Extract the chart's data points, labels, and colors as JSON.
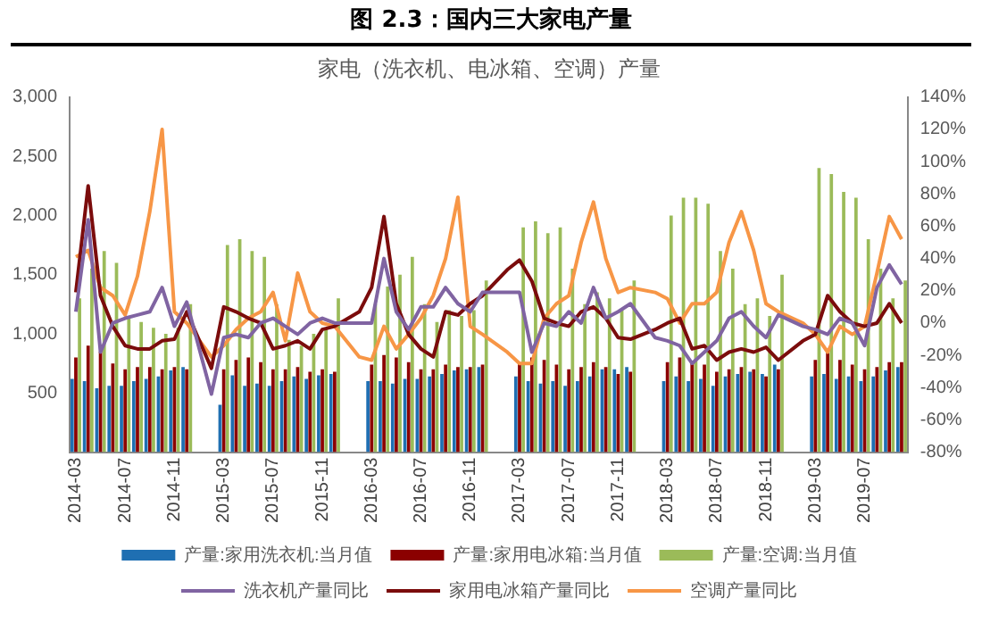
{
  "chart_data": {
    "type": "bar",
    "title": "图 2.3：国内三大家电产量",
    "subtitle": "家电（洗衣机、电冰箱、空调）产量",
    "categories": [
      "2014-03",
      null,
      null,
      null,
      "2014-07",
      null,
      null,
      null,
      "2014-11",
      null,
      null,
      null,
      "2015-03",
      null,
      null,
      null,
      "2015-07",
      null,
      null,
      null,
      "2015-11",
      null,
      null,
      null,
      "2016-03",
      null,
      null,
      null,
      "2016-07",
      null,
      null,
      null,
      "2016-11",
      null,
      null,
      null,
      "2017-03",
      null,
      null,
      null,
      "2017-07",
      null,
      null,
      null,
      "2017-11",
      null,
      null,
      null,
      "2018-03",
      null,
      null,
      null,
      "2018-07",
      null,
      null,
      null,
      "2018-11",
      null,
      null,
      null,
      "2019-03",
      null,
      null,
      null,
      "2019-07",
      null,
      null,
      null
    ],
    "series": [
      {
        "name": "产量:家用洗衣机:当月值",
        "color": "#1f6fb2",
        "values": [
          620,
          600,
          540,
          560,
          560,
          600,
          620,
          640,
          690,
          720,
          null,
          null,
          400,
          650,
          560,
          580,
          560,
          600,
          640,
          620,
          650,
          660,
          null,
          null,
          600,
          600,
          580,
          620,
          620,
          640,
          660,
          690,
          700,
          720,
          null,
          null,
          640,
          600,
          580,
          600,
          560,
          600,
          640,
          700,
          700,
          720,
          null,
          null,
          600,
          640,
          600,
          620,
          560,
          640,
          660,
          680,
          660,
          740,
          null,
          null,
          640,
          660,
          620,
          640,
          600,
          640,
          690,
          720
        ]
      },
      {
        "name": "产量:家用电冰箱:当月值",
        "color": "#8b0000",
        "values": [
          800,
          900,
          850,
          750,
          700,
          720,
          720,
          700,
          720,
          700,
          null,
          null,
          700,
          780,
          800,
          760,
          700,
          700,
          720,
          680,
          700,
          680,
          null,
          null,
          740,
          820,
          800,
          760,
          700,
          700,
          740,
          720,
          720,
          740,
          null,
          null,
          760,
          800,
          780,
          740,
          700,
          720,
          760,
          720,
          660,
          680,
          null,
          null,
          760,
          800,
          760,
          740,
          680,
          700,
          720,
          700,
          640,
          700,
          null,
          null,
          780,
          840,
          780,
          740,
          700,
          720,
          760,
          760
        ]
      },
      {
        "name": "产量:空调:当月值",
        "color": "#9bbb59",
        "values": [
          1300,
          1550,
          1700,
          1600,
          1150,
          1100,
          1050,
          1000,
          1050,
          1250,
          null,
          null,
          1750,
          1800,
          1700,
          1650,
          1250,
          950,
          900,
          1000,
          1050,
          1300,
          null,
          null,
          1250,
          1400,
          1500,
          1650,
          1250,
          1100,
          1200,
          1150,
          1200,
          1450,
          null,
          null,
          1900,
          1950,
          1850,
          1900,
          1550,
          1250,
          1350,
          1300,
          1200,
          1450,
          null,
          null,
          2000,
          2150,
          2150,
          2100,
          1700,
          1550,
          1250,
          1300,
          1150,
          1500,
          null,
          null,
          2400,
          2350,
          2200,
          2150,
          1800,
          1550,
          1300,
          1450
        ]
      },
      {
        "name": "洗衣机产量同比",
        "type": "line",
        "axis": "y2",
        "color": "#8064a2",
        "values": [
          7,
          64,
          -18,
          0,
          3,
          5,
          7,
          22,
          -2,
          13,
          null,
          -44,
          -9,
          -7,
          -9,
          0,
          3,
          -2,
          -7,
          0,
          3,
          0,
          null,
          0,
          0,
          40,
          7,
          -4,
          10,
          10,
          22,
          12,
          7,
          19,
          null,
          19,
          19,
          -18,
          0,
          -2,
          7,
          0,
          22,
          3,
          7,
          12,
          null,
          -9,
          -11,
          -14,
          -25,
          -18,
          -11,
          3,
          7,
          -2,
          -9,
          5,
          null,
          -2,
          -4,
          -7,
          3,
          0,
          -14,
          22,
          36,
          24
        ]
      },
      {
        "name": "家用电冰箱产量同比",
        "type": "line",
        "axis": "y2",
        "color": "#7b0c0c",
        "values": [
          19,
          85,
          17,
          -2,
          -14,
          -16,
          -16,
          -11,
          -10,
          7,
          null,
          -28,
          10,
          7,
          3,
          0,
          -16,
          -14,
          -11,
          -16,
          -4,
          -2,
          null,
          7,
          22,
          66,
          12,
          -7,
          -16,
          -21,
          7,
          5,
          12,
          17,
          null,
          33,
          39,
          26,
          3,
          0,
          -2,
          7,
          10,
          3,
          -9,
          -10,
          null,
          -4,
          0,
          3,
          -16,
          -14,
          -23,
          -18,
          -16,
          -18,
          -15,
          -23,
          null,
          -11,
          -7,
          17,
          7,
          0,
          -2,
          0,
          12,
          0
        ]
      },
      {
        "name": "空调产量同比",
        "type": "line",
        "axis": "y2",
        "color": "#f79646",
        "values": [
          41,
          45,
          22,
          17,
          5,
          29,
          69,
          120,
          7,
          0,
          null,
          -21,
          -14,
          -4,
          3,
          7,
          19,
          -11,
          31,
          7,
          0,
          -2,
          null,
          -21,
          -23,
          -2,
          -16,
          -7,
          3,
          17,
          40,
          78,
          -2,
          -7,
          null,
          -18,
          -25,
          -25,
          3,
          12,
          17,
          50,
          75,
          40,
          19,
          22,
          null,
          19,
          15,
          0,
          12,
          12,
          19,
          50,
          69,
          45,
          12,
          7,
          null,
          0,
          -7,
          -18,
          -2,
          -7,
          -2,
          31,
          66,
          52
        ]
      }
    ],
    "ylim": [
      0,
      3000
    ],
    "yticks": [
      {
        "value": 0,
        "label": null
      },
      500,
      {
        "value": 1000,
        "label": "1,000"
      },
      {
        "value": 1500,
        "label": "1,500"
      },
      {
        "value": 2000,
        "label": "2,000"
      },
      {
        "value": 2500,
        "label": "2,500"
      },
      {
        "value": 3000,
        "label": "3,000"
      }
    ],
    "y2lim": [
      -80,
      140
    ],
    "y2ticks": [
      {
        "value": -80,
        "label": "-80%"
      },
      {
        "value": -60,
        "label": "-60%"
      },
      {
        "value": -40,
        "label": "-40%"
      },
      {
        "value": -20,
        "label": "-20%"
      },
      {
        "value": 0,
        "label": "0%"
      },
      {
        "value": 20,
        "label": "20%"
      },
      {
        "value": 40,
        "label": "40%"
      },
      {
        "value": 60,
        "label": "60%"
      },
      {
        "value": 80,
        "label": "80%"
      },
      {
        "value": 100,
        "label": "100%"
      },
      {
        "value": 120,
        "label": "120%"
      },
      {
        "value": 140,
        "label": "140%"
      }
    ],
    "grid": false,
    "legend": "bottom",
    "marker": "none",
    "line_style": "solid"
  }
}
